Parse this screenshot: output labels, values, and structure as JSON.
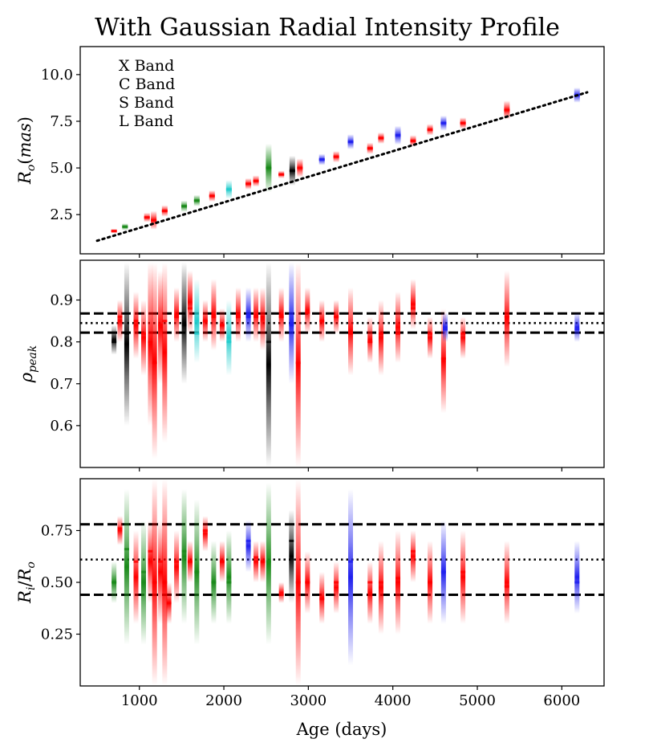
{
  "title": "With Gaussian Radial Intensity Profile",
  "band_colors": {
    "X": "#1a8a1a",
    "C": "#ff0000",
    "S": "#22cccc",
    "L": "#2020ee",
    "none": "#000000"
  },
  "chart_data": [
    {
      "type": "scatter",
      "name": "outer-radius-panel",
      "title": "With Gaussian Radial Intensity Profile",
      "ylabel": "R_o(mas)",
      "xlim": [
        300,
        6500
      ],
      "ylim": [
        0.4,
        11.5
      ],
      "xticks": [
        1000,
        2000,
        3000,
        4000,
        5000,
        6000
      ],
      "yticks": [
        2.5,
        5.0,
        7.5,
        10.0
      ],
      "ytick_labels": [
        "2.5",
        "5.0",
        "7.5",
        "10.0"
      ],
      "legend": {
        "position": "top-left",
        "entries": [
          {
            "label": "X Band",
            "band": "X"
          },
          {
            "label": "C Band",
            "band": "C"
          },
          {
            "label": "S Band",
            "band": "S"
          },
          {
            "label": "L Band",
            "band": "L"
          }
        ]
      },
      "fit_line": {
        "style": "dotted",
        "x": [
          500,
          6300
        ],
        "y": [
          1.1,
          9.05
        ]
      },
      "epochs": [
        {
          "x": 700,
          "y": 1.62,
          "spread": 0.12,
          "band": "C"
        },
        {
          "x": 830,
          "y": 1.85,
          "spread": 0.18,
          "band": "X"
        },
        {
          "x": 1090,
          "y": 2.35,
          "spread": 0.25,
          "band": "C"
        },
        {
          "x": 1170,
          "y": 2.2,
          "spread": 0.5,
          "band": "C"
        },
        {
          "x": 1300,
          "y": 2.7,
          "spread": 0.3,
          "band": "C"
        },
        {
          "x": 1530,
          "y": 2.95,
          "spread": 0.3,
          "band": "X"
        },
        {
          "x": 1680,
          "y": 3.25,
          "spread": 0.3,
          "band": "X"
        },
        {
          "x": 1860,
          "y": 3.5,
          "spread": 0.3,
          "band": "C"
        },
        {
          "x": 2060,
          "y": 3.85,
          "spread": 0.5,
          "band": "S"
        },
        {
          "x": 2290,
          "y": 4.15,
          "spread": 0.3,
          "band": "C"
        },
        {
          "x": 2380,
          "y": 4.3,
          "spread": 0.3,
          "band": "C"
        },
        {
          "x": 2530,
          "y": 5.0,
          "spread": 1.3,
          "band": "X"
        },
        {
          "x": 2680,
          "y": 4.65,
          "spread": 0.2,
          "band": "C"
        },
        {
          "x": 2810,
          "y": 4.85,
          "spread": 0.8,
          "band": "none"
        },
        {
          "x": 2900,
          "y": 5.0,
          "spread": 0.5,
          "band": "C"
        },
        {
          "x": 3160,
          "y": 5.45,
          "spread": 0.3,
          "band": "L"
        },
        {
          "x": 3330,
          "y": 5.6,
          "spread": 0.3,
          "band": "C"
        },
        {
          "x": 3500,
          "y": 6.4,
          "spread": 0.4,
          "band": "L"
        },
        {
          "x": 3730,
          "y": 6.05,
          "spread": 0.3,
          "band": "C"
        },
        {
          "x": 3860,
          "y": 6.6,
          "spread": 0.3,
          "band": "C"
        },
        {
          "x": 4060,
          "y": 6.75,
          "spread": 0.5,
          "band": "L"
        },
        {
          "x": 4240,
          "y": 6.45,
          "spread": 0.3,
          "band": "C"
        },
        {
          "x": 4440,
          "y": 7.05,
          "spread": 0.3,
          "band": "C"
        },
        {
          "x": 4600,
          "y": 7.4,
          "spread": 0.4,
          "band": "L"
        },
        {
          "x": 4830,
          "y": 7.4,
          "spread": 0.3,
          "band": "C"
        },
        {
          "x": 5350,
          "y": 8.1,
          "spread": 0.5,
          "band": "C"
        },
        {
          "x": 6180,
          "y": 8.9,
          "spread": 0.4,
          "band": "L"
        }
      ]
    },
    {
      "type": "scatter",
      "name": "peak-panel",
      "ylabel": "ρ_peak",
      "xlim": [
        300,
        6500
      ],
      "ylim": [
        0.5,
        0.995
      ],
      "xticks": [
        1000,
        2000,
        3000,
        4000,
        5000,
        6000
      ],
      "yticks": [
        0.6,
        0.7,
        0.8,
        0.9
      ],
      "ytick_labels": [
        "0.6",
        "0.7",
        "0.8",
        "0.9"
      ],
      "hlines": [
        {
          "y": 0.868,
          "style": "dashed"
        },
        {
          "y": 0.845,
          "style": "dotted"
        },
        {
          "y": 0.822,
          "style": "dashed"
        }
      ],
      "epochs": [
        {
          "x": 700,
          "y": 0.8,
          "lo": 0.77,
          "hi": 0.84,
          "band": "none"
        },
        {
          "x": 770,
          "y": 0.86,
          "lo": 0.8,
          "hi": 0.9,
          "band": "C"
        },
        {
          "x": 850,
          "y": 0.82,
          "lo": 0.6,
          "hi": 0.99,
          "band": "none"
        },
        {
          "x": 960,
          "y": 0.85,
          "lo": 0.76,
          "hi": 0.92,
          "band": "C"
        },
        {
          "x": 1050,
          "y": 0.82,
          "lo": 0.72,
          "hi": 0.9,
          "band": "C"
        },
        {
          "x": 1130,
          "y": 0.8,
          "lo": 0.6,
          "hi": 0.99,
          "band": "C"
        },
        {
          "x": 1180,
          "y": 0.75,
          "lo": 0.52,
          "hi": 0.99,
          "band": "C"
        },
        {
          "x": 1250,
          "y": 0.84,
          "lo": 0.7,
          "hi": 0.97,
          "band": "C"
        },
        {
          "x": 1300,
          "y": 0.85,
          "lo": 0.56,
          "hi": 0.99,
          "band": "C"
        },
        {
          "x": 1440,
          "y": 0.86,
          "lo": 0.8,
          "hi": 0.93,
          "band": "C"
        },
        {
          "x": 1530,
          "y": 0.84,
          "lo": 0.7,
          "hi": 0.99,
          "band": "none"
        },
        {
          "x": 1600,
          "y": 0.88,
          "lo": 0.82,
          "hi": 0.97,
          "band": "C"
        },
        {
          "x": 1680,
          "y": 0.82,
          "lo": 0.75,
          "hi": 0.95,
          "band": "S"
        },
        {
          "x": 1780,
          "y": 0.85,
          "lo": 0.8,
          "hi": 0.9,
          "band": "C"
        },
        {
          "x": 1880,
          "y": 0.86,
          "lo": 0.78,
          "hi": 0.95,
          "band": "C"
        },
        {
          "x": 1980,
          "y": 0.84,
          "lo": 0.8,
          "hi": 0.88,
          "band": "C"
        },
        {
          "x": 2060,
          "y": 0.8,
          "lo": 0.72,
          "hi": 0.9,
          "band": "S"
        },
        {
          "x": 2170,
          "y": 0.86,
          "lo": 0.8,
          "hi": 0.93,
          "band": "C"
        },
        {
          "x": 2290,
          "y": 0.86,
          "lo": 0.8,
          "hi": 0.93,
          "band": "L"
        },
        {
          "x": 2380,
          "y": 0.86,
          "lo": 0.8,
          "hi": 0.93,
          "band": "C"
        },
        {
          "x": 2460,
          "y": 0.86,
          "lo": 0.78,
          "hi": 0.93,
          "band": "C"
        },
        {
          "x": 2530,
          "y": 0.8,
          "lo": 0.5,
          "hi": 0.99,
          "band": "none"
        },
        {
          "x": 2680,
          "y": 0.86,
          "lo": 0.8,
          "hi": 0.93,
          "band": "C"
        },
        {
          "x": 2800,
          "y": 0.84,
          "lo": 0.7,
          "hi": 0.99,
          "band": "L"
        },
        {
          "x": 2880,
          "y": 0.75,
          "lo": 0.5,
          "hi": 0.99,
          "band": "C"
        },
        {
          "x": 2990,
          "y": 0.87,
          "lo": 0.82,
          "hi": 0.93,
          "band": "C"
        },
        {
          "x": 3160,
          "y": 0.85,
          "lo": 0.8,
          "hi": 0.9,
          "band": "C"
        },
        {
          "x": 3330,
          "y": 0.86,
          "lo": 0.82,
          "hi": 0.9,
          "band": "C"
        },
        {
          "x": 3500,
          "y": 0.82,
          "lo": 0.72,
          "hi": 0.93,
          "band": "C"
        },
        {
          "x": 3730,
          "y": 0.8,
          "lo": 0.75,
          "hi": 0.86,
          "band": "C"
        },
        {
          "x": 3860,
          "y": 0.82,
          "lo": 0.72,
          "hi": 0.9,
          "band": "C"
        },
        {
          "x": 4060,
          "y": 0.82,
          "lo": 0.75,
          "hi": 0.92,
          "band": "C"
        },
        {
          "x": 4240,
          "y": 0.88,
          "lo": 0.83,
          "hi": 0.95,
          "band": "C"
        },
        {
          "x": 4440,
          "y": 0.82,
          "lo": 0.76,
          "hi": 0.86,
          "band": "C"
        },
        {
          "x": 4600,
          "y": 0.76,
          "lo": 0.63,
          "hi": 0.88,
          "band": "C"
        },
        {
          "x": 4620,
          "y": 0.83,
          "lo": 0.8,
          "hi": 0.87,
          "band": "L"
        },
        {
          "x": 4830,
          "y": 0.82,
          "lo": 0.76,
          "hi": 0.86,
          "band": "C"
        },
        {
          "x": 5350,
          "y": 0.86,
          "lo": 0.74,
          "hi": 0.97,
          "band": "C"
        },
        {
          "x": 6180,
          "y": 0.83,
          "lo": 0.8,
          "hi": 0.87,
          "band": "L"
        }
      ]
    },
    {
      "type": "scatter",
      "name": "inner-ratio-panel",
      "ylabel": "R_i/R_o",
      "xlabel": "Age (days)",
      "xlim": [
        300,
        6500
      ],
      "ylim": [
        0.0,
        1.0
      ],
      "xticks": [
        1000,
        2000,
        3000,
        4000,
        5000,
        6000
      ],
      "xtick_labels": [
        "1000",
        "2000",
        "3000",
        "4000",
        "5000",
        "6000"
      ],
      "yticks": [
        0.25,
        0.5,
        0.75
      ],
      "ytick_labels": [
        "0.25",
        "0.50",
        "0.75"
      ],
      "hlines": [
        {
          "y": 0.78,
          "style": "dashed"
        },
        {
          "y": 0.61,
          "style": "dotted"
        },
        {
          "y": 0.44,
          "style": "dashed"
        }
      ],
      "epochs": [
        {
          "x": 700,
          "y": 0.5,
          "lo": 0.4,
          "hi": 0.6,
          "band": "X"
        },
        {
          "x": 770,
          "y": 0.76,
          "lo": 0.68,
          "hi": 0.82,
          "band": "C"
        },
        {
          "x": 850,
          "y": 0.66,
          "lo": 0.2,
          "hi": 0.95,
          "band": "X"
        },
        {
          "x": 960,
          "y": 0.6,
          "lo": 0.3,
          "hi": 0.75,
          "band": "C"
        },
        {
          "x": 1050,
          "y": 0.55,
          "lo": 0.2,
          "hi": 0.8,
          "band": "X"
        },
        {
          "x": 1130,
          "y": 0.65,
          "lo": 0.4,
          "hi": 0.8,
          "band": "C"
        },
        {
          "x": 1180,
          "y": 0.5,
          "lo": 0.0,
          "hi": 1.0,
          "band": "C"
        },
        {
          "x": 1250,
          "y": 0.6,
          "lo": 0.3,
          "hi": 0.8,
          "band": "C"
        },
        {
          "x": 1300,
          "y": 0.5,
          "lo": 0.0,
          "hi": 1.0,
          "band": "C"
        },
        {
          "x": 1350,
          "y": 0.4,
          "lo": 0.3,
          "hi": 0.5,
          "band": "C"
        },
        {
          "x": 1440,
          "y": 0.6,
          "lo": 0.4,
          "hi": 0.75,
          "band": "C"
        },
        {
          "x": 1530,
          "y": 0.65,
          "lo": 0.3,
          "hi": 0.95,
          "band": "X"
        },
        {
          "x": 1600,
          "y": 0.6,
          "lo": 0.5,
          "hi": 0.7,
          "band": "C"
        },
        {
          "x": 1680,
          "y": 0.55,
          "lo": 0.2,
          "hi": 0.9,
          "band": "X"
        },
        {
          "x": 1780,
          "y": 0.75,
          "lo": 0.65,
          "hi": 0.82,
          "band": "C"
        },
        {
          "x": 1880,
          "y": 0.5,
          "lo": 0.3,
          "hi": 0.7,
          "band": "X"
        },
        {
          "x": 1980,
          "y": 0.6,
          "lo": 0.5,
          "hi": 0.7,
          "band": "C"
        },
        {
          "x": 2060,
          "y": 0.5,
          "lo": 0.3,
          "hi": 0.75,
          "band": "X"
        },
        {
          "x": 2290,
          "y": 0.7,
          "lo": 0.55,
          "hi": 0.8,
          "band": "L"
        },
        {
          "x": 2380,
          "y": 0.62,
          "lo": 0.5,
          "hi": 0.7,
          "band": "C"
        },
        {
          "x": 2460,
          "y": 0.6,
          "lo": 0.5,
          "hi": 0.7,
          "band": "C"
        },
        {
          "x": 2530,
          "y": 0.6,
          "lo": 0.2,
          "hi": 0.98,
          "band": "X"
        },
        {
          "x": 2680,
          "y": 0.44,
          "lo": 0.4,
          "hi": 0.5,
          "band": "C"
        },
        {
          "x": 2800,
          "y": 0.7,
          "lo": 0.4,
          "hi": 0.85,
          "band": "none"
        },
        {
          "x": 2880,
          "y": 0.5,
          "lo": 0.0,
          "hi": 1.0,
          "band": "C"
        },
        {
          "x": 2990,
          "y": 0.5,
          "lo": 0.35,
          "hi": 0.65,
          "band": "C"
        },
        {
          "x": 3160,
          "y": 0.42,
          "lo": 0.3,
          "hi": 0.55,
          "band": "C"
        },
        {
          "x": 3330,
          "y": 0.5,
          "lo": 0.35,
          "hi": 0.6,
          "band": "C"
        },
        {
          "x": 3500,
          "y": 0.6,
          "lo": 0.1,
          "hi": 0.95,
          "band": "L"
        },
        {
          "x": 3730,
          "y": 0.5,
          "lo": 0.3,
          "hi": 0.6,
          "band": "C"
        },
        {
          "x": 3860,
          "y": 0.5,
          "lo": 0.25,
          "hi": 0.7,
          "band": "C"
        },
        {
          "x": 4060,
          "y": 0.52,
          "lo": 0.25,
          "hi": 0.75,
          "band": "C"
        },
        {
          "x": 4240,
          "y": 0.65,
          "lo": 0.5,
          "hi": 0.75,
          "band": "C"
        },
        {
          "x": 4440,
          "y": 0.5,
          "lo": 0.3,
          "hi": 0.7,
          "band": "C"
        },
        {
          "x": 4600,
          "y": 0.55,
          "lo": 0.3,
          "hi": 0.8,
          "band": "L"
        },
        {
          "x": 4830,
          "y": 0.55,
          "lo": 0.3,
          "hi": 0.75,
          "band": "C"
        },
        {
          "x": 5350,
          "y": 0.48,
          "lo": 0.3,
          "hi": 0.7,
          "band": "C"
        },
        {
          "x": 6180,
          "y": 0.5,
          "lo": 0.35,
          "hi": 0.7,
          "band": "L"
        }
      ]
    }
  ]
}
